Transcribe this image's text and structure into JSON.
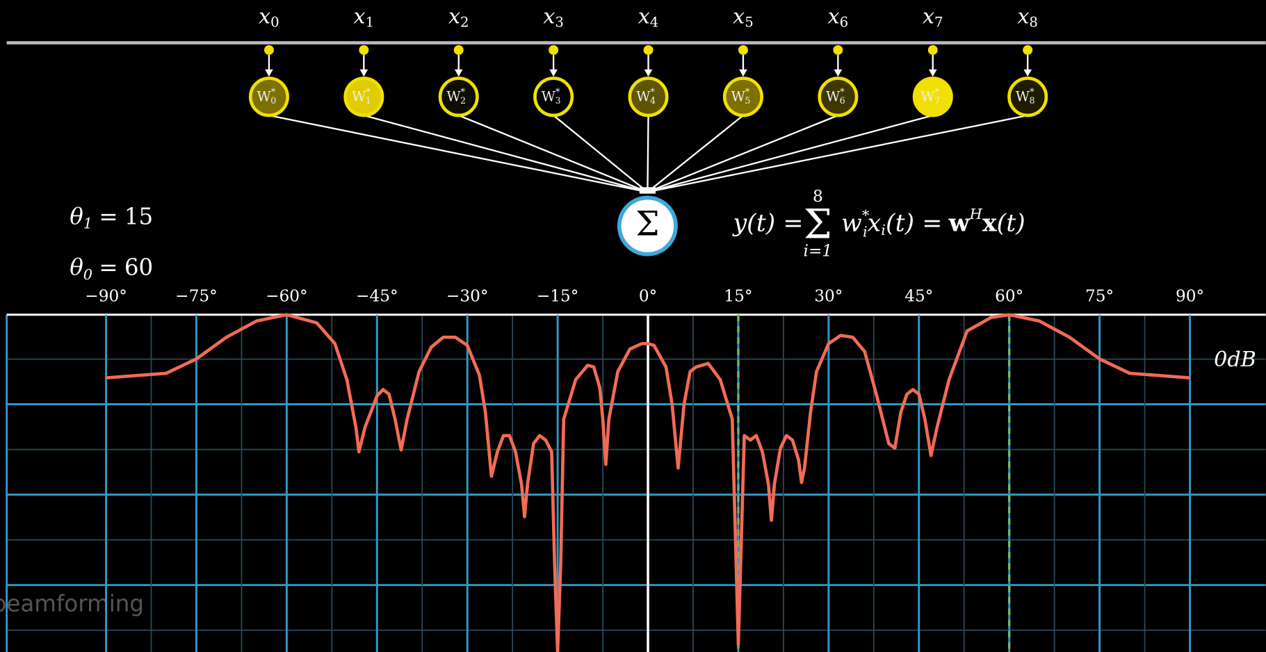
{
  "inputs": [
    {
      "label": "x",
      "sub": "0",
      "fill": "#7d7000"
    },
    {
      "label": "x",
      "sub": "1",
      "fill": "#e0cc00"
    },
    {
      "label": "x",
      "sub": "2",
      "fill": "#0d0d00"
    },
    {
      "label": "x",
      "sub": "3",
      "fill": "#000000"
    },
    {
      "label": "x",
      "sub": "4",
      "fill": "#5e5500"
    },
    {
      "label": "x",
      "sub": "5",
      "fill": "#7d7000"
    },
    {
      "label": "x",
      "sub": "6",
      "fill": "#3e3800"
    },
    {
      "label": "x",
      "sub": "7",
      "fill": "#f2e000"
    },
    {
      "label": "x",
      "sub": "8",
      "fill": "#1e1b00"
    }
  ],
  "weight": {
    "label": "W",
    "sup": "*"
  },
  "sum": {
    "label": "Σ"
  },
  "angles": [
    {
      "symbol": "θ",
      "sub": "1",
      "sign": "=",
      "value": 15
    },
    {
      "symbol": "θ",
      "sub": "0",
      "sign": "=",
      "value": 60
    }
  ],
  "formula": {
    "lhs": "y(t) =",
    "sigma": "Σ",
    "upper": "8",
    "lower": "i=1",
    "w": "w",
    "wsub": "i",
    "wsup": "*",
    "x": "x",
    "xsub": "i",
    "mid": "(t) =",
    "bw": "w",
    "bwsup": "H",
    "bx": "x",
    "end": "(t)"
  },
  "watermark": "beamforming",
  "chart_data": {
    "type": "line",
    "annotation": "0dB",
    "color": "#f26b55",
    "xlim": [
      -106.5,
      102.6
    ],
    "ylim": [
      -30.4,
      7
    ],
    "xticks": [
      {
        "value": -90,
        "label": "−90°"
      },
      {
        "value": -75,
        "label": "−75°"
      },
      {
        "value": -60,
        "label": "−60°"
      },
      {
        "value": -45,
        "label": "−45°"
      },
      {
        "value": -30,
        "label": "−30°"
      },
      {
        "value": -15,
        "label": "−15°"
      },
      {
        "value": 0,
        "label": "0°"
      },
      {
        "value": 15,
        "label": "15°"
      },
      {
        "value": 30,
        "label": "30°"
      },
      {
        "value": 45,
        "label": "45°"
      },
      {
        "value": 60,
        "label": "60°"
      },
      {
        "value": 75,
        "label": "75°"
      },
      {
        "value": 90,
        "label": "90°"
      }
    ],
    "x": [
      -90,
      -80,
      -75,
      -70,
      -65,
      -60,
      -55,
      -52,
      -50,
      -48.5,
      -48,
      -47,
      -45,
      -44,
      -43,
      -42,
      -41,
      -40,
      -38,
      -36,
      -34,
      -32,
      -30,
      -28,
      -27,
      -26,
      -25,
      -24,
      -23,
      -22,
      -21,
      -20.5,
      -20,
      -19,
      -18,
      -17,
      -16,
      -15.5,
      -15,
      -14.5,
      -14,
      -12,
      -10,
      -9,
      -8,
      -7.5,
      -7,
      -6.5,
      -5,
      -3,
      -1,
      0,
      1,
      3,
      4,
      5,
      6,
      7,
      8,
      10,
      12,
      14,
      15,
      16,
      17,
      18,
      19,
      20,
      20.5,
      21,
      22,
      23,
      24,
      25,
      25.5,
      26,
      27,
      28,
      30,
      32,
      34,
      36,
      38,
      40,
      41,
      42,
      43,
      44,
      45,
      46,
      47,
      48,
      50,
      53,
      57,
      60,
      65,
      70,
      75,
      80,
      90
    ],
    "values": [
      0,
      0.5,
      2.1,
      4.5,
      6.3,
      7.0,
      6.1,
      3.8,
      -0.2,
      -5.5,
      -8.2,
      -5.5,
      -2.0,
      -1.3,
      -1.8,
      -4.6,
      -8.0,
      -4.6,
      0.7,
      3.4,
      4.5,
      4.5,
      3.6,
      0.3,
      -3.8,
      -10.9,
      -8.2,
      -6.4,
      -6.4,
      -8.2,
      -11.8,
      -15.4,
      -11.8,
      -7.3,
      -6.4,
      -6.9,
      -8.2,
      -20.7,
      -30.4,
      -20.7,
      -4.6,
      -0.2,
      1.4,
      1.2,
      -1.1,
      -4.6,
      -9.6,
      -4.6,
      0.7,
      3.2,
      3.8,
      3.8,
      3.6,
      1.2,
      -2.9,
      -10.0,
      -2.9,
      0.7,
      1.2,
      1.6,
      -0.2,
      -4.6,
      -29.6,
      -6.4,
      -6.9,
      -6.4,
      -8.2,
      -11.8,
      -15.8,
      -11.8,
      -7.8,
      -6.4,
      -6.9,
      -9.1,
      -11.6,
      -10.0,
      -3.8,
      0.7,
      3.8,
      4.7,
      4.5,
      2.9,
      -2.0,
      -7.3,
      -7.8,
      -3.8,
      -1.8,
      -1.3,
      -1.8,
      -4.6,
      -8.6,
      -5.5,
      -0.2,
      5.2,
      6.7,
      7.0,
      6.3,
      4.5,
      2.1,
      0.5,
      0
    ]
  }
}
